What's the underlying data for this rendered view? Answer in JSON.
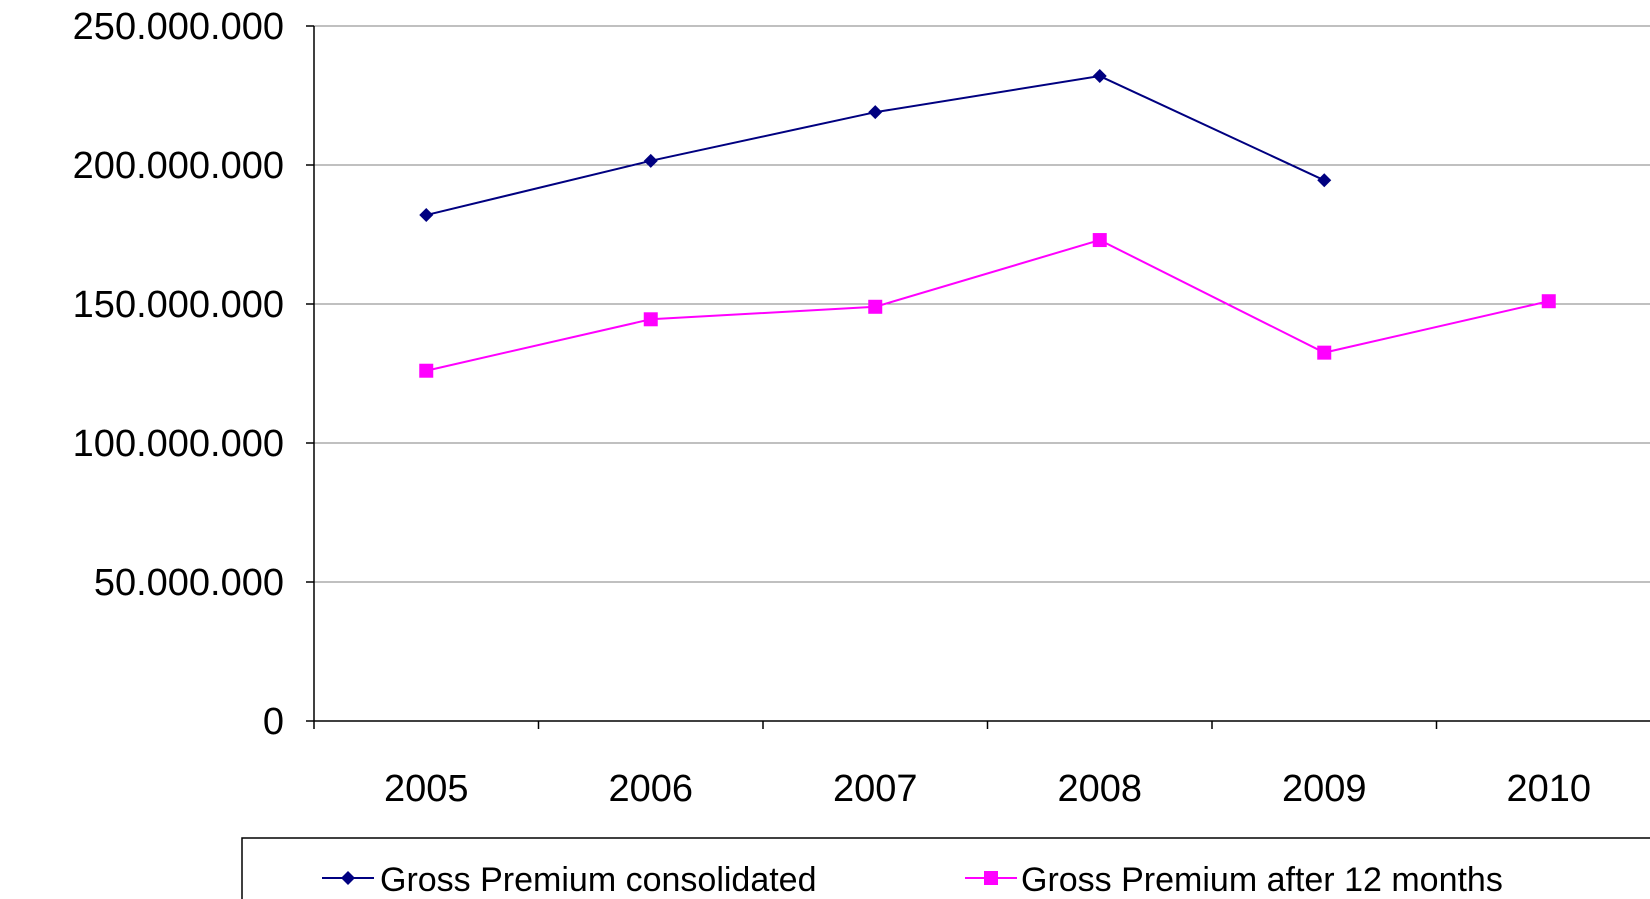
{
  "chart_data": {
    "type": "line",
    "categories": [
      "2005",
      "2006",
      "2007",
      "2008",
      "2009",
      "2010"
    ],
    "ylim": [
      0,
      250000000
    ],
    "yticks": [
      0,
      50000000,
      100000000,
      150000000,
      200000000,
      250000000
    ],
    "ytick_labels": [
      "0",
      "50.000.000",
      "100.000.000",
      "150.000.000",
      "200.000.000",
      "250.000.000"
    ],
    "grid": true,
    "legend_position": "bottom",
    "series": [
      {
        "name": "Gross Premium consolidated",
        "color": "#000080",
        "marker": "diamond",
        "values": [
          182000000,
          201500000,
          219000000,
          232000000,
          194500000,
          null
        ]
      },
      {
        "name": "Gross Premium after 12 months",
        "color": "#ff00ff",
        "marker": "square",
        "values": [
          126000000,
          144500000,
          149000000,
          173000000,
          132500000,
          151000000
        ]
      }
    ]
  }
}
